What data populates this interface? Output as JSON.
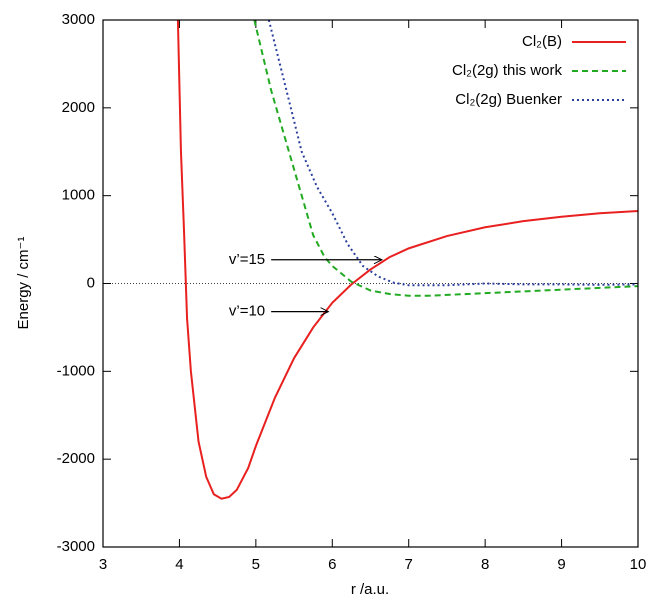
{
  "chart_data": {
    "type": "line",
    "xlabel": "r /a.u.",
    "ylabel": "Energy / cm⁻¹",
    "xlim": [
      3,
      10
    ],
    "ylim": [
      -3000,
      3000
    ],
    "xticks": [
      3,
      4,
      5,
      6,
      7,
      8,
      9,
      10
    ],
    "yticks": [
      -3000,
      -2000,
      -1000,
      0,
      1000,
      2000,
      3000
    ],
    "hline": 0,
    "legend": "upper right",
    "series": [
      {
        "name": "Cl₂(B)",
        "color": "#e8201f",
        "dash": "solid",
        "x": [
          3.98,
          4.02,
          4.06,
          4.1,
          4.15,
          4.25,
          4.35,
          4.45,
          4.55,
          4.65,
          4.75,
          4.9,
          5.0,
          5.25,
          5.5,
          5.75,
          6.0,
          6.25,
          6.5,
          6.75,
          7.0,
          7.5,
          8.0,
          8.5,
          9.0,
          9.5,
          10.0
        ],
        "values": [
          3000,
          1500,
          600,
          -400,
          -1000,
          -1800,
          -2200,
          -2400,
          -2450,
          -2430,
          -2350,
          -2100,
          -1850,
          -1300,
          -850,
          -500,
          -220,
          -10,
          160,
          300,
          400,
          540,
          640,
          710,
          760,
          800,
          825
        ]
      },
      {
        "name": "Cl₂(2g) this work",
        "color": "#22aa22",
        "dash": "dashed",
        "x": [
          4.98,
          5.2,
          5.4,
          5.6,
          5.75,
          5.9,
          6.0,
          6.25,
          6.5,
          6.75,
          7.0,
          7.25,
          7.5,
          8.0,
          8.5,
          9.0,
          9.5,
          10.0
        ],
        "values": [
          3000,
          2200,
          1600,
          1000,
          550,
          300,
          200,
          20,
          -80,
          -120,
          -140,
          -140,
          -130,
          -110,
          -90,
          -70,
          -50,
          -30
        ]
      },
      {
        "name": "Cl₂(2g) Buenker",
        "color": "#2b3f9e",
        "dash": "dotted",
        "x": [
          5.17,
          5.4,
          5.6,
          5.8,
          6.0,
          6.2,
          6.4,
          6.6,
          6.8,
          7.0,
          7.5,
          8.0,
          8.5,
          9.0,
          9.5,
          10.0
        ],
        "values": [
          3000,
          2200,
          1500,
          1100,
          800,
          450,
          200,
          80,
          10,
          -20,
          -20,
          0,
          -10,
          -10,
          -15,
          -10
        ]
      }
    ],
    "annotations": [
      {
        "text": "v’=15",
        "xy": [
          6.65,
          270
        ],
        "xytext": [
          5.2,
          270
        ]
      },
      {
        "text": "v’=10",
        "xy": [
          5.95,
          -320
        ],
        "xytext": [
          5.2,
          -320
        ]
      }
    ]
  }
}
